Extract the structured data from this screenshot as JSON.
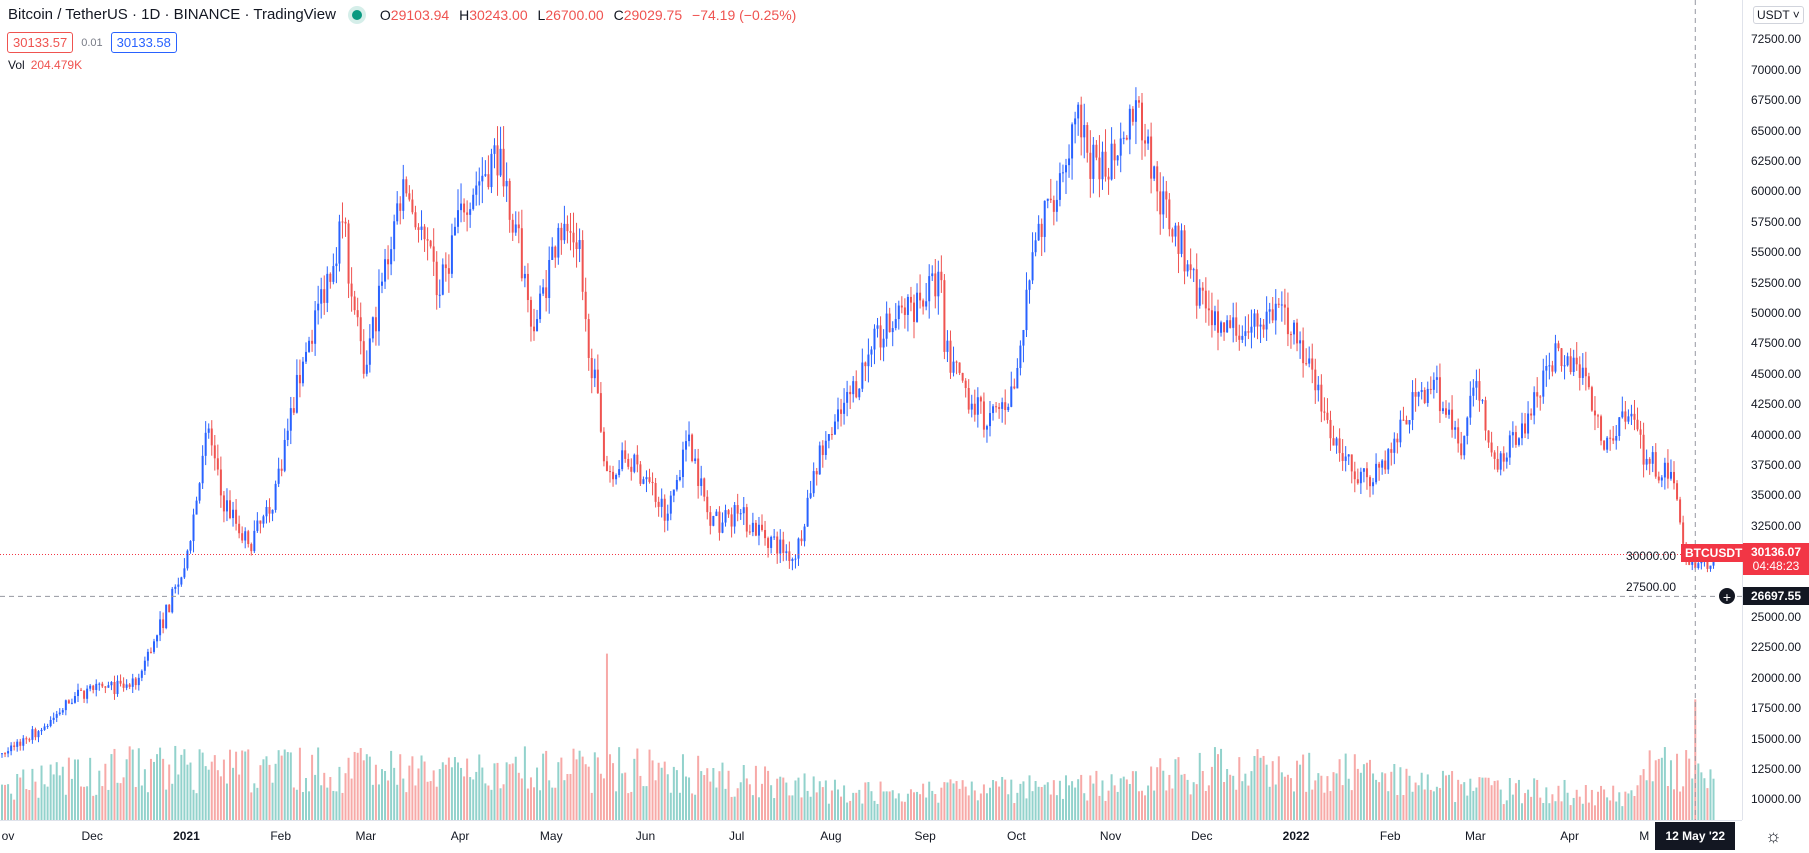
{
  "header": {
    "title": "Bitcoin / TetherUS · 1D · BINANCE · TradingView",
    "ohlc": {
      "o_label": "O",
      "o": "29103.94",
      "h_label": "H",
      "h": "30243.00",
      "l_label": "L",
      "l": "26700.00",
      "c_label": "C",
      "c": "29029.75",
      "change": "−74.19 (−0.25%)"
    },
    "bid": "30133.57",
    "spread": "0.01",
    "ask": "30133.58",
    "vol_label": "Vol",
    "vol_value": "204.479K"
  },
  "axis": {
    "currency": "USDT",
    "last_price": "30136.07",
    "countdown": "04:48:23",
    "symbol_tag": "BTCUSDT",
    "crosshair_price": "26697.55",
    "crosshair_date": "12 May '22",
    "plus_icon": "+",
    "gear_icon": "☼"
  },
  "colors": {
    "up": "#2962ff",
    "down": "#ef5350",
    "vol_up": "#92d2cc",
    "vol_down": "#f7a9a7",
    "last": "#f23645"
  },
  "chart_data": {
    "type": "candlestick",
    "title": "Bitcoin / TetherUS · 1D · BINANCE",
    "ylim": [
      7500,
      75000
    ],
    "y_ticks": [
      "72500.00",
      "70000.00",
      "67500.00",
      "65000.00",
      "62500.00",
      "60000.00",
      "57500.00",
      "55000.00",
      "52500.00",
      "50000.00",
      "47500.00",
      "45000.00",
      "42500.00",
      "40000.00",
      "37500.00",
      "35000.00",
      "32500.00",
      "30000.00",
      "27500.00",
      "25000.00",
      "22500.00",
      "20000.00",
      "17500.00",
      "15000.00",
      "12500.00",
      "10000.00"
    ],
    "x_ticks": [
      {
        "label": "ov",
        "date": "2020-11-01"
      },
      {
        "label": "Dec",
        "date": "2020-12-01"
      },
      {
        "label": "2021",
        "date": "2021-01-01",
        "year": true
      },
      {
        "label": "Feb",
        "date": "2021-02-01"
      },
      {
        "label": "Mar",
        "date": "2021-03-01"
      },
      {
        "label": "Apr",
        "date": "2021-04-01"
      },
      {
        "label": "May",
        "date": "2021-05-01"
      },
      {
        "label": "Jun",
        "date": "2021-06-01"
      },
      {
        "label": "Jul",
        "date": "2021-07-01"
      },
      {
        "label": "Aug",
        "date": "2021-08-01"
      },
      {
        "label": "Sep",
        "date": "2021-09-01"
      },
      {
        "label": "Oct",
        "date": "2021-10-01"
      },
      {
        "label": "Nov",
        "date": "2021-11-01"
      },
      {
        "label": "Dec",
        "date": "2021-12-01"
      },
      {
        "label": "2022",
        "date": "2022-01-01",
        "year": true
      },
      {
        "label": "Feb",
        "date": "2022-02-01"
      },
      {
        "label": "Mar",
        "date": "2022-03-01"
      },
      {
        "label": "Apr",
        "date": "2022-04-01"
      },
      {
        "label": "M",
        "date": "2022-05-01"
      }
    ],
    "close_anchors": [
      [
        "2020-11-01",
        13800
      ],
      [
        "2020-11-15",
        16000
      ],
      [
        "2020-11-25",
        18500
      ],
      [
        "2020-12-01",
        19000
      ],
      [
        "2020-12-15",
        19400
      ],
      [
        "2020-12-21",
        23000
      ],
      [
        "2020-12-31",
        29000
      ],
      [
        "2021-01-08",
        40500
      ],
      [
        "2021-01-12",
        35000
      ],
      [
        "2021-01-21",
        31000
      ],
      [
        "2021-01-28",
        33500
      ],
      [
        "2021-02-08",
        46000
      ],
      [
        "2021-02-21",
        57500
      ],
      [
        "2021-02-28",
        45000
      ],
      [
        "2021-03-13",
        61000
      ],
      [
        "2021-03-25",
        51500
      ],
      [
        "2021-04-01",
        59000
      ],
      [
        "2021-04-14",
        63500
      ],
      [
        "2021-04-25",
        48500
      ],
      [
        "2021-05-03",
        57000
      ],
      [
        "2021-05-10",
        56000
      ],
      [
        "2021-05-12",
        49500
      ],
      [
        "2021-05-19",
        37000
      ],
      [
        "2021-05-25",
        38000
      ],
      [
        "2021-06-01",
        36500
      ],
      [
        "2021-06-08",
        33500
      ],
      [
        "2021-06-15",
        40000
      ],
      [
        "2021-06-22",
        32500
      ],
      [
        "2021-07-01",
        33500
      ],
      [
        "2021-07-20",
        29800
      ],
      [
        "2021-07-26",
        37000
      ],
      [
        "2021-08-01",
        40000
      ],
      [
        "2021-08-14",
        47000
      ],
      [
        "2021-08-22",
        49500
      ],
      [
        "2021-09-06",
        52700
      ],
      [
        "2021-09-07",
        46800
      ],
      [
        "2021-09-21",
        40700
      ],
      [
        "2021-09-30",
        43800
      ],
      [
        "2021-10-06",
        55000
      ],
      [
        "2021-10-15",
        61500
      ],
      [
        "2021-10-20",
        66000
      ],
      [
        "2021-10-28",
        61000
      ],
      [
        "2021-11-09",
        67500
      ],
      [
        "2021-11-16",
        60000
      ],
      [
        "2021-11-26",
        54000
      ],
      [
        "2021-12-04",
        49000
      ],
      [
        "2021-12-15",
        48500
      ],
      [
        "2021-12-27",
        50700
      ],
      [
        "2022-01-01",
        47500
      ],
      [
        "2022-01-10",
        41800
      ],
      [
        "2022-01-21",
        36000
      ],
      [
        "2022-01-24",
        36500
      ],
      [
        "2022-02-01",
        38500
      ],
      [
        "2022-02-10",
        43500
      ],
      [
        "2022-02-15",
        44500
      ],
      [
        "2022-02-24",
        38300
      ],
      [
        "2022-03-01",
        44400
      ],
      [
        "2022-03-07",
        38000
      ],
      [
        "2022-03-15",
        39700
      ],
      [
        "2022-03-28",
        47100
      ],
      [
        "2022-04-05",
        45500
      ],
      [
        "2022-04-11",
        39500
      ],
      [
        "2022-04-20",
        41500
      ],
      [
        "2022-04-26",
        38000
      ],
      [
        "2022-05-05",
        36000
      ],
      [
        "2022-05-09",
        30000
      ],
      [
        "2022-05-12",
        29029.75
      ],
      [
        "2022-05-18",
        30136.07
      ]
    ],
    "volume_anchors_k": [
      [
        "2020-11-01",
        60
      ],
      [
        "2021-01-10",
        110
      ],
      [
        "2021-02-20",
        90
      ],
      [
        "2021-04-20",
        80
      ],
      [
        "2021-05-19",
        282
      ],
      [
        "2021-06-10",
        90
      ],
      [
        "2021-08-01",
        50
      ],
      [
        "2021-10-20",
        55
      ],
      [
        "2021-12-04",
        90
      ],
      [
        "2022-01-22",
        80
      ],
      [
        "2022-03-01",
        55
      ],
      [
        "2022-04-20",
        45
      ],
      [
        "2022-05-12",
        204.479
      ],
      [
        "2022-05-18",
        70
      ]
    ]
  }
}
